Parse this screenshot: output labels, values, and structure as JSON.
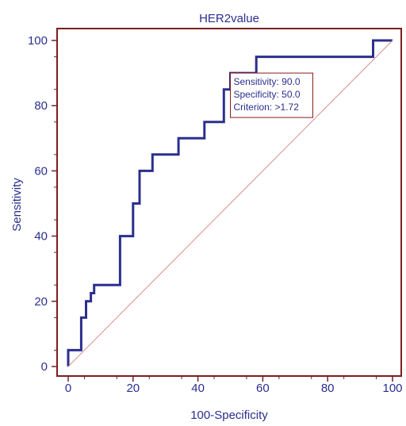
{
  "chart_data": {
    "type": "line",
    "title": "HER2value",
    "xlabel": "100-Specificity",
    "ylabel": "Sensitivity",
    "xlim": [
      0,
      100
    ],
    "ylim": [
      0,
      100
    ],
    "xticks": [
      0,
      20,
      40,
      60,
      80,
      100
    ],
    "yticks": [
      0,
      20,
      40,
      60,
      80,
      100
    ],
    "xtick_labels": [
      "0",
      "20",
      "40",
      "60",
      "80",
      "100"
    ],
    "ytick_labels": [
      "0",
      "20",
      "40",
      "60",
      "80",
      "100"
    ],
    "grid": false,
    "series": [
      {
        "id": "roc",
        "color": "#2b2f8f",
        "step": true,
        "x": [
          0,
          0,
          4,
          4,
          5.5,
          5.5,
          7,
          7,
          8,
          8,
          16,
          16,
          20,
          20,
          22,
          22,
          26,
          26,
          34,
          34,
          42,
          42,
          48,
          48,
          50,
          50,
          58,
          58,
          94,
          94,
          100
        ],
        "y": [
          0,
          5,
          5,
          15,
          15,
          20,
          20,
          22.5,
          22.5,
          25,
          25,
          40,
          40,
          50,
          50,
          60,
          60,
          65,
          65,
          70,
          70,
          75,
          75,
          85,
          85,
          90,
          90,
          95,
          95,
          100,
          100
        ]
      },
      {
        "id": "reference-diagonal",
        "color": "#d98c8c",
        "x": [
          0,
          100
        ],
        "y": [
          0,
          100
        ]
      }
    ],
    "annotations": [
      {
        "anchor": {
          "x": 50,
          "y": 90
        },
        "box_color": "#8b1a1a",
        "lines": [
          "Sensitivity: 90.0",
          "Specificity: 50.0",
          "Criterion: >1.72"
        ]
      }
    ],
    "colors": {
      "frame": "#7a1f1f",
      "text": "#2b2f8f",
      "roc": "#2b2f8f",
      "diagonal": "#d98c8c"
    }
  }
}
